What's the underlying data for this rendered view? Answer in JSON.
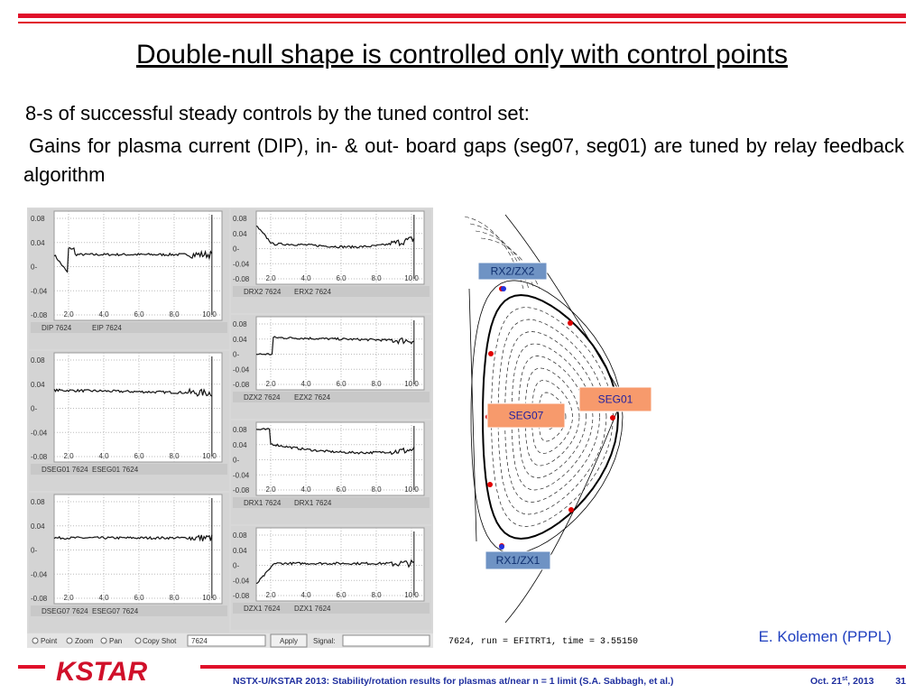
{
  "title": "Double-null shape is controlled only with control points",
  "bullets": [
    "8-s of successful steady controls by the tuned control set:",
    "Gains for plasma current (DIP), in- & out- board gaps (seg07, seg01) are tuned by relay feedback algorithm"
  ],
  "plots": {
    "y_ticks": [
      "0.08",
      "0.04",
      "0-",
      "-0.04",
      "-0.08"
    ],
    "x_ticks": [
      "2.0",
      "4.0",
      "6.0",
      "8.0",
      "10.0"
    ],
    "left_panels": [
      [
        "DIP 7624",
        "EIP 7624"
      ],
      [
        "DSEG01 7624",
        "ESEG01 7624"
      ],
      [
        "DSEG07 7624",
        "ESEG07 7624"
      ]
    ],
    "right_panels": [
      [
        "DRX2 7624",
        "ERX2 7624"
      ],
      [
        "DZX2 7624",
        "EZX2 7624"
      ],
      [
        "DRX1 7624",
        "DRX1 7624"
      ],
      [
        "DZX1 7624",
        "DZX1 7624"
      ]
    ],
    "toolbar": {
      "modes": [
        "Point",
        "Zoom",
        "Pan"
      ],
      "copy": "Copy Shot",
      "shot": "7624",
      "apply": "Apply",
      "signal": "Signal:"
    }
  },
  "equilibrium": {
    "labels": [
      "RX2/ZX2",
      "SEG01",
      "SEG07",
      "RX1/ZX1"
    ],
    "caption": "7624, run = EFITRT1, time = 3.55150"
  },
  "credit": "E. Kolemen (PPPL)",
  "footer": {
    "logo": "KSTAR",
    "text": "NSTX-U/KSTAR 2013: Stability/rotation results for plasmas at/near  n = 1 limit (S.A. Sabbagh, et al.)",
    "date_main": "Oct. 21",
    "date_sup": "st",
    "date_year": ", 2013",
    "page": "31"
  }
}
